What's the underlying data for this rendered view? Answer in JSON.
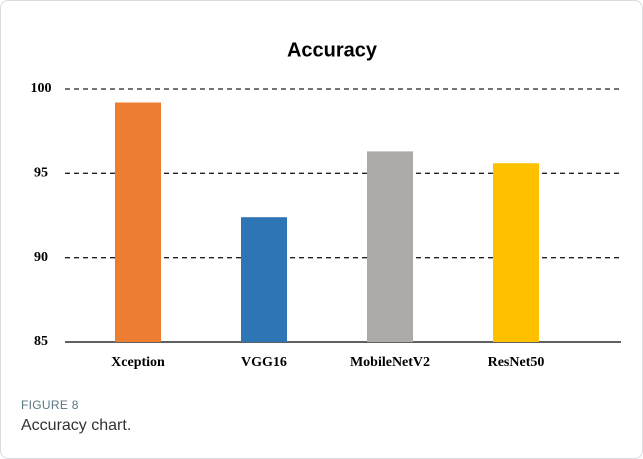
{
  "chart_data": {
    "type": "bar",
    "title": "Accuracy",
    "categories": [
      "Xception",
      "VGG16",
      "MobileNetV2",
      "ResNet50"
    ],
    "values": [
      99.2,
      92.4,
      96.3,
      95.6
    ],
    "colors": [
      "#ed7d31",
      "#2e75b6",
      "#adaaa7",
      "#ffc000"
    ],
    "ylim": [
      85,
      100
    ],
    "yticks": [
      85,
      90,
      95,
      100
    ],
    "grid": true
  },
  "figure": {
    "label": "FIGURE 8",
    "caption": "Accuracy chart."
  }
}
